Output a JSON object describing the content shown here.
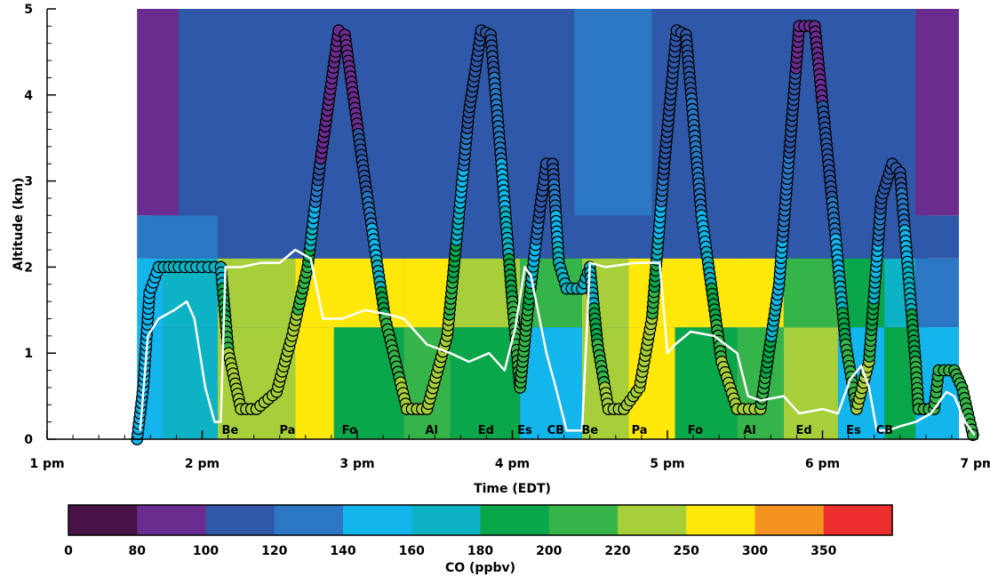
{
  "chart_data": {
    "type": "heatmap",
    "xlabel": "Time (EDT)",
    "ylabel": "Altitude (km)",
    "colorbar_label": "CO (ppbv)",
    "xlim": [
      13.0,
      19.0
    ],
    "ylim": [
      0,
      5
    ],
    "x_ticks": [
      {
        "value": 13,
        "label": "1 pm"
      },
      {
        "value": 14,
        "label": "2 pm"
      },
      {
        "value": 15,
        "label": "3 pm"
      },
      {
        "value": 16,
        "label": "4 pm"
      },
      {
        "value": 17,
        "label": "5 pm"
      },
      {
        "value": 18,
        "label": "6 pm"
      },
      {
        "value": 19,
        "label": "7 pm"
      }
    ],
    "y_ticks": [
      0,
      1,
      2,
      3,
      4,
      5
    ],
    "colorbar": {
      "boundaries": [
        0,
        80,
        100,
        120,
        140,
        160,
        180,
        200,
        220,
        250,
        300,
        350
      ],
      "colors": [
        "#4a1348",
        "#6a2d8f",
        "#2f58a8",
        "#2b77c3",
        "#12b5ec",
        "#0db3c4",
        "#0aa64a",
        "#35b44a",
        "#a6cf3a",
        "#ffe80a",
        "#f4931f",
        "#ee2d2d"
      ]
    },
    "site_labels": [
      {
        "text": "Be",
        "x": 14.18
      },
      {
        "text": "Pa",
        "x": 14.55
      },
      {
        "text": "Fo",
        "x": 14.95
      },
      {
        "text": "Al",
        "x": 15.48
      },
      {
        "text": "Ed",
        "x": 15.83
      },
      {
        "text": "Es",
        "x": 16.08
      },
      {
        "text": "CB",
        "x": 16.28
      },
      {
        "text": "Be",
        "x": 16.5
      },
      {
        "text": "Pa",
        "x": 16.82
      },
      {
        "text": "Fo",
        "x": 17.18
      },
      {
        "text": "Al",
        "x": 17.53
      },
      {
        "text": "Ed",
        "x": 17.88
      },
      {
        "text": "Es",
        "x": 18.2
      },
      {
        "text": "CB",
        "x": 18.4
      }
    ],
    "heatmap_bands": [
      {
        "y_from": 0.0,
        "y_to": 1.3,
        "segments": [
          {
            "x_from": 13.58,
            "x_to": 13.75,
            "value": 150
          },
          {
            "x_from": 13.75,
            "x_to": 14.1,
            "value": 170
          },
          {
            "x_from": 14.1,
            "x_to": 14.6,
            "value": 240
          },
          {
            "x_from": 14.6,
            "x_to": 14.85,
            "value": 260
          },
          {
            "x_from": 14.85,
            "x_to": 15.3,
            "value": 195
          },
          {
            "x_from": 15.3,
            "x_to": 15.6,
            "value": 210
          },
          {
            "x_from": 15.6,
            "x_to": 16.05,
            "value": 195
          },
          {
            "x_from": 16.05,
            "x_to": 16.45,
            "value": 150
          },
          {
            "x_from": 16.45,
            "x_to": 16.75,
            "value": 225
          },
          {
            "x_from": 16.75,
            "x_to": 17.05,
            "value": 260
          },
          {
            "x_from": 17.05,
            "x_to": 17.45,
            "value": 195
          },
          {
            "x_from": 17.45,
            "x_to": 17.75,
            "value": 205
          },
          {
            "x_from": 17.75,
            "x_to": 18.1,
            "value": 230
          },
          {
            "x_from": 18.1,
            "x_to": 18.4,
            "value": 150
          },
          {
            "x_from": 18.4,
            "x_to": 18.6,
            "value": 185
          },
          {
            "x_from": 18.6,
            "x_to": 18.88,
            "value": 150
          }
        ]
      },
      {
        "y_from": 1.3,
        "y_to": 2.1,
        "segments": [
          {
            "x_from": 13.58,
            "x_to": 13.75,
            "value": 150
          },
          {
            "x_from": 13.75,
            "x_to": 14.1,
            "value": 160
          },
          {
            "x_from": 14.1,
            "x_to": 14.6,
            "value": 230
          },
          {
            "x_from": 14.6,
            "x_to": 15.3,
            "value": 260
          },
          {
            "x_from": 15.3,
            "x_to": 15.6,
            "value": 270
          },
          {
            "x_from": 15.6,
            "x_to": 16.05,
            "value": 230
          },
          {
            "x_from": 16.05,
            "x_to": 16.45,
            "value": 200
          },
          {
            "x_from": 16.45,
            "x_to": 16.75,
            "value": 235
          },
          {
            "x_from": 16.75,
            "x_to": 17.45,
            "value": 255
          },
          {
            "x_from": 17.45,
            "x_to": 17.75,
            "value": 265
          },
          {
            "x_from": 17.75,
            "x_to": 18.1,
            "value": 210
          },
          {
            "x_from": 18.1,
            "x_to": 18.4,
            "value": 190
          },
          {
            "x_from": 18.4,
            "x_to": 18.6,
            "value": 170
          },
          {
            "x_from": 18.6,
            "x_to": 18.88,
            "value": 130
          }
        ]
      },
      {
        "y_from": 2.1,
        "y_to": 2.6,
        "segments": [
          {
            "x_from": 13.58,
            "x_to": 14.1,
            "value": 125
          },
          {
            "x_from": 14.1,
            "x_to": 16.45,
            "value": 115
          },
          {
            "x_from": 16.45,
            "x_to": 18.4,
            "value": 110
          },
          {
            "x_from": 18.4,
            "x_to": 18.88,
            "value": 115
          }
        ]
      },
      {
        "y_from": 2.6,
        "y_to": 5.0,
        "segments": [
          {
            "x_from": 13.58,
            "x_to": 13.85,
            "value": 95
          },
          {
            "x_from": 13.85,
            "x_to": 15.2,
            "value": 105
          },
          {
            "x_from": 15.2,
            "x_to": 16.4,
            "value": 110
          },
          {
            "x_from": 16.4,
            "x_to": 16.9,
            "value": 125
          },
          {
            "x_from": 16.9,
            "x_to": 18.6,
            "value": 110
          },
          {
            "x_from": 18.6,
            "x_to": 18.88,
            "value": 95
          }
        ]
      }
    ],
    "series": [
      {
        "type": "flight_track",
        "points": [
          [
            13.58,
            0.0,
            140
          ],
          [
            13.62,
            0.6,
            150
          ],
          [
            13.66,
            1.7,
            150
          ],
          [
            13.72,
            2.0,
            160
          ],
          [
            13.85,
            2.0,
            170
          ],
          [
            14.0,
            2.0,
            170
          ],
          [
            14.12,
            2.0,
            170
          ],
          [
            14.17,
            1.0,
            220
          ],
          [
            14.25,
            0.35,
            230
          ],
          [
            14.35,
            0.35,
            230
          ],
          [
            14.48,
            0.55,
            230
          ],
          [
            14.58,
            1.2,
            230
          ],
          [
            14.68,
            2.0,
            200
          ],
          [
            14.76,
            3.2,
            100
          ],
          [
            14.88,
            4.75,
            80
          ],
          [
            14.92,
            4.7,
            80
          ],
          [
            15.05,
            3.0,
            110
          ],
          [
            15.18,
            1.4,
            200
          ],
          [
            15.32,
            0.35,
            230
          ],
          [
            15.45,
            0.35,
            230
          ],
          [
            15.58,
            1.2,
            230
          ],
          [
            15.72,
            3.8,
            110
          ],
          [
            15.8,
            4.75,
            110
          ],
          [
            15.86,
            4.7,
            110
          ],
          [
            15.93,
            3.2,
            140
          ],
          [
            16.0,
            1.6,
            200
          ],
          [
            16.05,
            0.6,
            200
          ],
          [
            16.1,
            1.5,
            200
          ],
          [
            16.18,
            2.7,
            110
          ],
          [
            16.22,
            3.2,
            110
          ],
          [
            16.26,
            3.2,
            110
          ],
          [
            16.3,
            2.05,
            170
          ],
          [
            16.35,
            1.75,
            170
          ],
          [
            16.45,
            1.75,
            160
          ],
          [
            16.5,
            2.0,
            160
          ],
          [
            16.55,
            1.1,
            200
          ],
          [
            16.62,
            0.35,
            230
          ],
          [
            16.72,
            0.35,
            230
          ],
          [
            16.82,
            0.6,
            230
          ],
          [
            16.9,
            1.4,
            220
          ],
          [
            16.98,
            3.2,
            110
          ],
          [
            17.06,
            4.75,
            110
          ],
          [
            17.12,
            4.7,
            110
          ],
          [
            17.22,
            2.6,
            140
          ],
          [
            17.35,
            0.9,
            220
          ],
          [
            17.45,
            0.35,
            220
          ],
          [
            17.6,
            0.35,
            220
          ],
          [
            17.72,
            1.8,
            150
          ],
          [
            17.85,
            4.8,
            90
          ],
          [
            17.95,
            4.8,
            90
          ],
          [
            18.05,
            3.0,
            110
          ],
          [
            18.15,
            1.1,
            200
          ],
          [
            18.22,
            0.35,
            220
          ],
          [
            18.3,
            0.9,
            220
          ],
          [
            18.38,
            2.8,
            110
          ],
          [
            18.45,
            3.2,
            110
          ],
          [
            18.5,
            3.1,
            110
          ],
          [
            18.55,
            2.0,
            160
          ],
          [
            18.6,
            0.9,
            200
          ],
          [
            18.62,
            0.35,
            200
          ],
          [
            18.72,
            0.35,
            200
          ],
          [
            18.75,
            0.8,
            200
          ],
          [
            18.85,
            0.8,
            200
          ],
          [
            18.9,
            0.6,
            200
          ],
          [
            18.97,
            0.05,
            200
          ]
        ]
      },
      {
        "type": "boundary_layer_height",
        "color": "#ffffff",
        "points": [
          [
            13.6,
            0.1
          ],
          [
            13.65,
            1.2
          ],
          [
            13.72,
            1.4
          ],
          [
            13.82,
            1.5
          ],
          [
            13.9,
            1.6
          ],
          [
            13.95,
            1.4
          ],
          [
            14.02,
            0.6
          ],
          [
            14.08,
            0.2
          ],
          [
            14.12,
            0.2
          ],
          [
            14.15,
            2.0
          ],
          [
            14.25,
            2.0
          ],
          [
            14.38,
            2.05
          ],
          [
            14.5,
            2.05
          ],
          [
            14.6,
            2.2
          ],
          [
            14.7,
            2.1
          ],
          [
            14.78,
            1.4
          ],
          [
            14.9,
            1.4
          ],
          [
            15.05,
            1.5
          ],
          [
            15.2,
            1.45
          ],
          [
            15.3,
            1.4
          ],
          [
            15.45,
            1.1
          ],
          [
            15.6,
            1.0
          ],
          [
            15.72,
            0.9
          ],
          [
            15.85,
            1.0
          ],
          [
            15.95,
            0.8
          ],
          [
            16.02,
            1.3
          ],
          [
            16.08,
            2.0
          ],
          [
            16.12,
            1.9
          ],
          [
            16.22,
            1.0
          ],
          [
            16.28,
            0.6
          ],
          [
            16.35,
            0.1
          ],
          [
            16.45,
            0.1
          ],
          [
            16.5,
            2.05
          ],
          [
            16.6,
            2.0
          ],
          [
            16.8,
            2.05
          ],
          [
            16.95,
            2.05
          ],
          [
            17.0,
            1.0
          ],
          [
            17.05,
            1.1
          ],
          [
            17.15,
            1.25
          ],
          [
            17.3,
            1.2
          ],
          [
            17.45,
            1.0
          ],
          [
            17.52,
            0.5
          ],
          [
            17.6,
            0.45
          ],
          [
            17.75,
            0.5
          ],
          [
            17.85,
            0.3
          ],
          [
            18.0,
            0.35
          ],
          [
            18.1,
            0.3
          ],
          [
            18.18,
            0.7
          ],
          [
            18.25,
            0.85
          ],
          [
            18.3,
            0.6
          ],
          [
            18.35,
            0.1
          ],
          [
            18.42,
            0.1
          ],
          [
            18.5,
            0.15
          ],
          [
            18.6,
            0.2
          ],
          [
            18.7,
            0.3
          ],
          [
            18.8,
            0.55
          ],
          [
            18.85,
            0.5
          ],
          [
            18.92,
            0.2
          ],
          [
            18.98,
            0.05
          ]
        ]
      }
    ]
  }
}
